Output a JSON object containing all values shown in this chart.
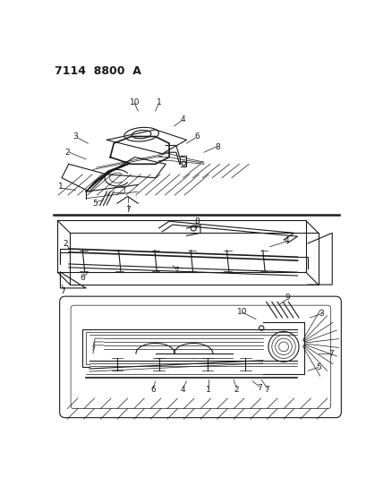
{
  "title": "7114  8800  A",
  "bg_color": "#ffffff",
  "line_color": "#1a1a1a",
  "title_fontsize": 9,
  "label_fontsize": 6.5,
  "fig_width": 4.28,
  "fig_height": 5.33,
  "dpi": 100
}
